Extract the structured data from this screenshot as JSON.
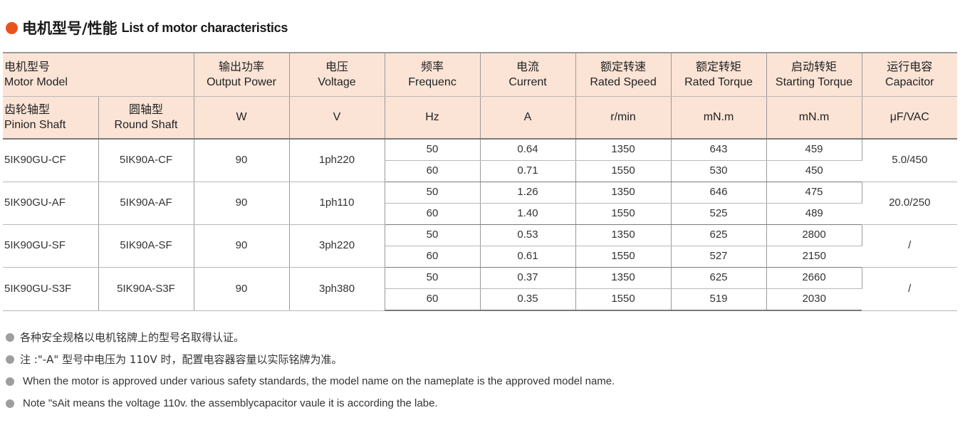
{
  "title": {
    "cn": "电机型号/性能",
    "en": "List of motor characteristics"
  },
  "headers": {
    "model": {
      "cn": "电机型号",
      "en": "Motor Model"
    },
    "pinion": {
      "cn": "齿轮轴型",
      "en": "Pinion Shaft"
    },
    "round": {
      "cn": "圆轴型",
      "en": "Round Shaft"
    },
    "power": {
      "cn": "输出功率",
      "en": "Output Power",
      "unit": "W"
    },
    "voltage": {
      "cn": "电压",
      "en": "Voltage",
      "unit": "V"
    },
    "freq": {
      "cn": "频率",
      "en": "Frequenc",
      "unit": "Hz"
    },
    "current": {
      "cn": "电流",
      "en": "Current",
      "unit": "A"
    },
    "speed": {
      "cn": "额定转速",
      "en": "Rated Speed",
      "unit": "r/min"
    },
    "torque": {
      "cn": "额定转矩",
      "en": "Rated Torque",
      "unit": "mN.m"
    },
    "start": {
      "cn": "启动转矩",
      "en": "Starting Torque",
      "unit": "mN.m"
    },
    "cap": {
      "cn": "运行电容",
      "en": "Capacitor",
      "unit": "μF/VAC"
    }
  },
  "rows": [
    {
      "pinion": "5IK90GU-CF",
      "round": "5IK90A-CF",
      "power": "90",
      "voltage": "1ph220",
      "cap": "5.0/450",
      "sub": [
        {
          "freq": "50",
          "current": "0.64",
          "speed": "1350",
          "torque": "643",
          "start": "459"
        },
        {
          "freq": "60",
          "current": "0.71",
          "speed": "1550",
          "torque": "530",
          "start": "450"
        }
      ]
    },
    {
      "pinion": "5IK90GU-AF",
      "round": "5IK90A-AF",
      "power": "90",
      "voltage": "1ph110",
      "cap": "20.0/250",
      "sub": [
        {
          "freq": "50",
          "current": "1.26",
          "speed": "1350",
          "torque": "646",
          "start": "475"
        },
        {
          "freq": "60",
          "current": "1.40",
          "speed": "1550",
          "torque": "525",
          "start": "489"
        }
      ]
    },
    {
      "pinion": "5IK90GU-SF",
      "round": "5IK90A-SF",
      "power": "90",
      "voltage": "3ph220",
      "cap": "/",
      "sub": [
        {
          "freq": "50",
          "current": "0.53",
          "speed": "1350",
          "torque": "625",
          "start": "2800"
        },
        {
          "freq": "60",
          "current": "0.61",
          "speed": "1550",
          "torque": "527",
          "start": "2150"
        }
      ]
    },
    {
      "pinion": "5IK90GU-S3F",
      "round": "5IK90A-S3F",
      "power": "90",
      "voltage": "3ph380",
      "cap": "/",
      "sub": [
        {
          "freq": "50",
          "current": "0.37",
          "speed": "1350",
          "torque": "625",
          "start": "2660"
        },
        {
          "freq": "60",
          "current": "0.35",
          "speed": "1550",
          "torque": "519",
          "start": "2030"
        }
      ]
    }
  ],
  "notes": {
    "cn1": "各种安全规格以电机铭牌上的型号名取得认证。",
    "cn2": "注 :\"-A\" 型号中电压为 110V 时，配置电容器容量以实际铭牌为准。",
    "en1": "When the motor is approved under various safety standards, the model name on the nameplate is the approved model name.",
    "en2": "Note \"sAit means the voltage 110v. the assemblycapacitor vaule it is according the labe."
  },
  "colors": {
    "accent": "#e8531d",
    "header_bg": "#fbe4d6",
    "bullet": "#9e9e9e"
  }
}
